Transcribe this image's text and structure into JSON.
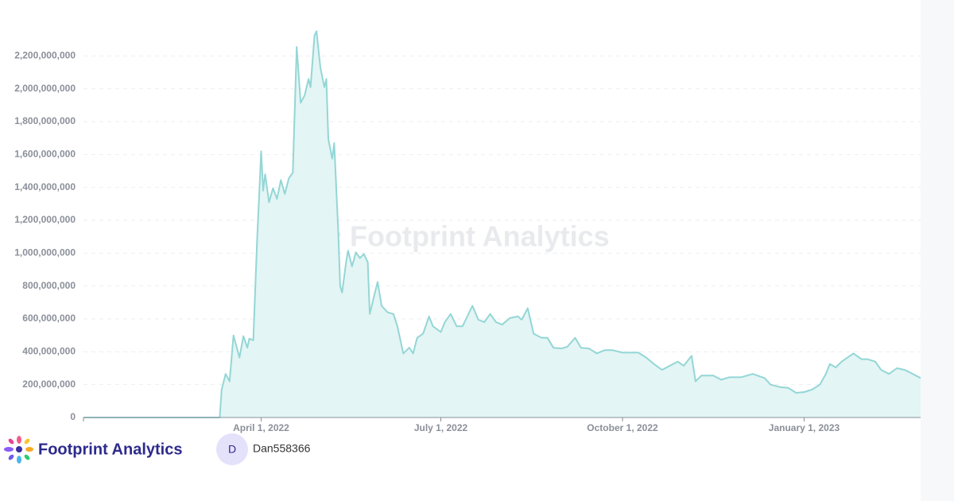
{
  "chart_data": {
    "type": "area",
    "watermark": "Footprint Analytics",
    "color": "#94d6d6",
    "fill": "#e3f5f4",
    "grid": true,
    "xlim": [
      "2022-01-01",
      "2023-03-01"
    ],
    "xticks": [
      {
        "value": "2022-04-01",
        "label": "April 1, 2022"
      },
      {
        "value": "2022-07-01",
        "label": "July 1, 2022"
      },
      {
        "value": "2022-10-01",
        "label": "October 1, 2022"
      },
      {
        "value": "2023-01-01",
        "label": "January 1, 2023"
      }
    ],
    "ylim": [
      0,
      2400000000
    ],
    "yticks": [
      0,
      {
        "value": 200000000,
        "label": "200,000,000"
      },
      {
        "value": 400000000,
        "label": "400,000,000"
      },
      {
        "value": 600000000,
        "label": "600,000,000"
      },
      {
        "value": 800000000,
        "label": "800,000,000"
      },
      {
        "value": 1000000000,
        "label": "1,000,000,000"
      },
      {
        "value": 1200000000,
        "label": "1,200,000,000"
      },
      {
        "value": 1400000000,
        "label": "1,400,000,000"
      },
      {
        "value": 1600000000,
        "label": "1,600,000,000"
      },
      {
        "value": 1800000000,
        "label": "1,800,000,000"
      },
      {
        "value": 2000000000,
        "label": "2,000,000,000"
      },
      {
        "value": 2200000000,
        "label": "2,200,000,000"
      }
    ],
    "x": [
      "2022-01-01",
      "2022-03-11",
      "2022-03-12",
      "2022-03-14",
      "2022-03-16",
      "2022-03-18",
      "2022-03-20",
      "2022-03-21",
      "2022-03-23",
      "2022-03-25",
      "2022-03-26",
      "2022-03-28",
      "2022-03-30",
      "2022-04-01",
      "2022-04-02",
      "2022-04-03",
      "2022-04-05",
      "2022-04-07",
      "2022-04-09",
      "2022-04-11",
      "2022-04-13",
      "2022-04-15",
      "2022-04-17",
      "2022-04-19",
      "2022-04-21",
      "2022-04-23",
      "2022-04-25",
      "2022-04-26",
      "2022-04-28",
      "2022-04-29",
      "2022-05-01",
      "2022-05-03",
      "2022-05-04",
      "2022-05-05",
      "2022-05-07",
      "2022-05-08",
      "2022-05-10",
      "2022-05-11",
      "2022-05-12",
      "2022-05-14",
      "2022-05-15",
      "2022-05-17",
      "2022-05-19",
      "2022-05-21",
      "2022-05-23",
      "2022-05-25",
      "2022-05-26",
      "2022-05-28",
      "2022-05-30",
      "2022-06-01",
      "2022-06-04",
      "2022-06-07",
      "2022-06-09",
      "2022-06-12",
      "2022-06-15",
      "2022-06-17",
      "2022-06-19",
      "2022-06-22",
      "2022-06-25",
      "2022-06-27",
      "2022-07-01",
      "2022-07-03",
      "2022-07-06",
      "2022-07-09",
      "2022-07-12",
      "2022-07-14",
      "2022-07-17",
      "2022-07-20",
      "2022-07-23",
      "2022-07-26",
      "2022-07-29",
      "2022-08-01",
      "2022-08-05",
      "2022-08-09",
      "2022-08-11",
      "2022-08-14",
      "2022-08-17",
      "2022-08-21",
      "2022-08-24",
      "2022-08-27",
      "2022-08-31",
      "2022-09-03",
      "2022-09-07",
      "2022-09-10",
      "2022-09-14",
      "2022-09-18",
      "2022-09-22",
      "2022-09-26",
      "2022-10-01",
      "2022-10-04",
      "2022-10-09",
      "2022-10-13",
      "2022-10-17",
      "2022-10-21",
      "2022-10-25",
      "2022-10-29",
      "2022-11-01",
      "2022-11-05",
      "2022-11-07",
      "2022-11-10",
      "2022-11-16",
      "2022-11-20",
      "2022-11-24",
      "2022-11-30",
      "2022-12-06",
      "2022-12-12",
      "2022-12-15",
      "2022-12-20",
      "2022-12-24",
      "2022-12-28",
      "2023-01-01",
      "2023-01-05",
      "2023-01-09",
      "2023-01-12",
      "2023-01-14",
      "2023-01-17",
      "2023-01-20",
      "2023-01-23",
      "2023-01-26",
      "2023-01-30",
      "2023-02-02",
      "2023-02-06",
      "2023-02-09",
      "2023-02-13",
      "2023-02-17",
      "2023-02-21",
      "2023-02-25",
      "2023-03-01"
    ],
    "values": [
      0,
      0,
      170000000,
      265000000,
      220000000,
      500000000,
      410000000,
      365000000,
      495000000,
      425000000,
      480000000,
      470000000,
      1090000000,
      1620000000,
      1380000000,
      1480000000,
      1310000000,
      1395000000,
      1330000000,
      1445000000,
      1360000000,
      1455000000,
      1490000000,
      2255000000,
      1915000000,
      1960000000,
      2060000000,
      2010000000,
      2325000000,
      2350000000,
      2130000000,
      2010000000,
      2060000000,
      1695000000,
      1575000000,
      1670000000,
      1140000000,
      800000000,
      760000000,
      945000000,
      1015000000,
      920000000,
      1005000000,
      970000000,
      995000000,
      945000000,
      630000000,
      730000000,
      825000000,
      680000000,
      640000000,
      630000000,
      555000000,
      390000000,
      425000000,
      390000000,
      485000000,
      510000000,
      615000000,
      555000000,
      520000000,
      580000000,
      630000000,
      555000000,
      555000000,
      605000000,
      680000000,
      595000000,
      580000000,
      630000000,
      580000000,
      565000000,
      605000000,
      615000000,
      595000000,
      665000000,
      510000000,
      485000000,
      485000000,
      425000000,
      420000000,
      430000000,
      485000000,
      425000000,
      420000000,
      390000000,
      410000000,
      410000000,
      395000000,
      395000000,
      395000000,
      365000000,
      325000000,
      290000000,
      315000000,
      340000000,
      315000000,
      375000000,
      220000000,
      255000000,
      255000000,
      230000000,
      245000000,
      245000000,
      265000000,
      240000000,
      200000000,
      185000000,
      180000000,
      150000000,
      155000000,
      170000000,
      200000000,
      265000000,
      325000000,
      305000000,
      340000000,
      365000000,
      390000000,
      355000000,
      355000000,
      340000000,
      290000000,
      265000000,
      300000000,
      290000000,
      265000000,
      240000000
    ]
  },
  "footer": {
    "brand": "Footprint Analytics",
    "avatar": "D",
    "user": "Dan558366"
  }
}
